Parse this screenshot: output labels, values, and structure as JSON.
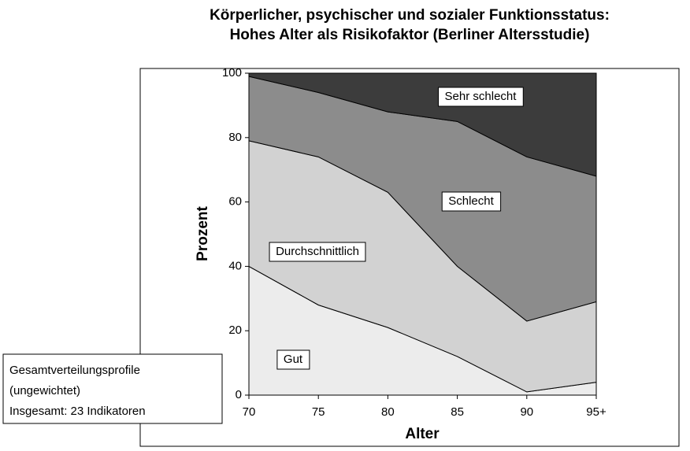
{
  "chart_data": {
    "type": "stacked_area",
    "title": [
      "Körperlicher, psychischer und sozialer Funktionsstatus:",
      "Hohes Alter als Risikofaktor (Berliner Altersstudie)"
    ],
    "xlabel": "Alter",
    "ylabel": "Prozent",
    "categories": [
      "70",
      "75",
      "80",
      "85",
      "90",
      "95+"
    ],
    "series": [
      {
        "name": "Gut",
        "color": "#ececec",
        "values": [
          40,
          28,
          21,
          12,
          1,
          4
        ]
      },
      {
        "name": "Durchschnittlich",
        "color": "#d2d2d2",
        "values": [
          39,
          46,
          42,
          28,
          22,
          25
        ]
      },
      {
        "name": "Schlecht",
        "color": "#8c8c8c",
        "values": [
          20,
          20,
          25,
          45,
          51,
          39
        ]
      },
      {
        "name": "Sehr schlecht",
        "color": "#3c3c3c",
        "values": [
          1,
          6,
          12,
          15,
          26,
          32
        ]
      }
    ],
    "ylim": [
      0,
      100
    ],
    "yticks": [
      0,
      20,
      40,
      60,
      80,
      100
    ],
    "annotations": [
      "Gesamtverteilungsprofile",
      "(ungewichtet)",
      "Insgesamt: 23 Indikatoren"
    ]
  }
}
